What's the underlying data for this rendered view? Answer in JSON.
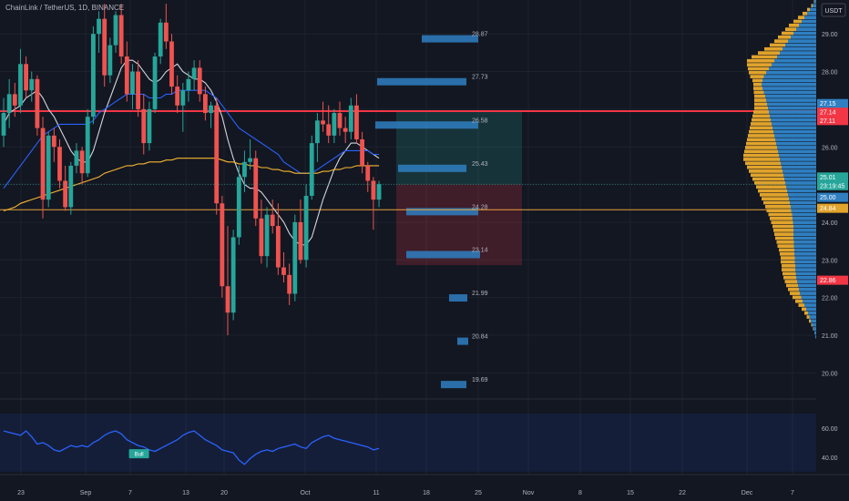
{
  "header": {
    "symbol_title": "ChainLink / TetherUS, 1D, BINANCE",
    "currency_button": "USDT"
  },
  "colors": {
    "background": "#131722",
    "grid": "#1e222d",
    "up": "#26a69a",
    "down": "#ef5350",
    "ma_fast": "#d1d4dc",
    "ma_mid": "#2962ff",
    "ma_slow": "#f7b531",
    "rsi_line": "#2962ff",
    "volume_profile_buy": "#2f7fc1",
    "volume_profile_sell": "#e1a42c",
    "resistance_line": "#f23645",
    "support_line": "#e8a23a"
  },
  "chart_data": {
    "type": "candlestick",
    "price_axis": {
      "ticks": [
        "29.00",
        "28.00",
        "27.00",
        "26.00",
        "25.00",
        "24.00",
        "23.00",
        "22.00",
        "21.00",
        "20.00"
      ],
      "range": [
        19.5,
        29.9
      ]
    },
    "price_labels": [
      {
        "text": "27.15",
        "price": 27.15,
        "color": "#2f7fc1"
      },
      {
        "text": "27.14",
        "price": 26.92,
        "color": "#f23645"
      },
      {
        "text": "27.11",
        "price": 26.7,
        "color": "#f23645"
      },
      {
        "text": "25.01",
        "price": 25.2,
        "color": "#26a69a"
      },
      {
        "text": "23:19:45",
        "price": 24.97,
        "color": "#26a69a"
      },
      {
        "text": "25.00",
        "price": 24.66,
        "color": "#2f7fc1"
      },
      {
        "text": "24.84",
        "price": 24.37,
        "color": "#e1a42c"
      },
      {
        "text": "22.86",
        "price": 22.46,
        "color": "#f23645"
      }
    ],
    "time_axis": {
      "ticks": [
        "23",
        "Sep",
        "7",
        "13",
        "20",
        "Oct",
        "11",
        "18",
        "25",
        "Nov",
        "8",
        "15",
        "22",
        "Dec",
        "7"
      ]
    },
    "horizontal_lines": [
      {
        "price": 26.95,
        "color": "#f23645"
      },
      {
        "price": 24.33,
        "color": "#e8a23a"
      }
    ],
    "candles": [
      [
        26.3,
        27.3,
        26.0,
        26.9
      ],
      [
        26.9,
        27.8,
        26.5,
        27.4
      ],
      [
        27.4,
        27.7,
        26.8,
        27.1
      ],
      [
        27.1,
        28.6,
        26.9,
        28.2
      ],
      [
        28.2,
        28.4,
        27.3,
        27.5
      ],
      [
        27.5,
        28.0,
        27.2,
        27.8
      ],
      [
        27.8,
        27.9,
        26.3,
        26.5
      ],
      [
        26.5,
        26.8,
        24.1,
        24.6
      ],
      [
        24.6,
        26.4,
        24.4,
        26.3
      ],
      [
        26.3,
        26.5,
        25.6,
        26.0
      ],
      [
        26.0,
        26.2,
        24.9,
        25.1
      ],
      [
        25.1,
        25.5,
        24.3,
        24.4
      ],
      [
        24.4,
        25.6,
        24.2,
        25.5
      ],
      [
        25.5,
        26.1,
        25.3,
        25.9
      ],
      [
        25.9,
        26.0,
        25.0,
        25.3
      ],
      [
        25.3,
        27.0,
        25.2,
        26.8
      ],
      [
        26.8,
        29.2,
        26.6,
        29.0
      ],
      [
        29.0,
        29.6,
        28.5,
        29.4
      ],
      [
        29.4,
        29.8,
        27.6,
        27.9
      ],
      [
        27.9,
        28.9,
        27.7,
        28.7
      ],
      [
        28.7,
        29.6,
        28.5,
        29.5
      ],
      [
        29.5,
        29.8,
        28.2,
        28.4
      ],
      [
        28.4,
        28.8,
        27.2,
        27.4
      ],
      [
        27.4,
        28.2,
        27.0,
        28.0
      ],
      [
        28.0,
        28.3,
        26.8,
        27.0
      ],
      [
        27.0,
        27.4,
        25.8,
        26.1
      ],
      [
        26.1,
        27.2,
        25.9,
        27.0
      ],
      [
        27.0,
        28.5,
        26.9,
        28.4
      ],
      [
        28.4,
        29.4,
        28.2,
        29.3
      ],
      [
        29.3,
        29.8,
        28.6,
        28.8
      ],
      [
        28.8,
        29.0,
        27.4,
        27.6
      ],
      [
        27.6,
        27.9,
        26.9,
        27.1
      ],
      [
        27.1,
        27.7,
        26.4,
        27.5
      ],
      [
        27.5,
        28.0,
        27.2,
        27.8
      ],
      [
        27.8,
        28.3,
        27.5,
        28.1
      ],
      [
        28.1,
        28.3,
        27.2,
        27.4
      ],
      [
        27.4,
        27.6,
        26.7,
        26.9
      ],
      [
        26.9,
        27.2,
        26.5,
        27.1
      ],
      [
        27.1,
        27.3,
        24.2,
        24.5
      ],
      [
        24.5,
        24.7,
        22.0,
        22.3
      ],
      [
        22.3,
        23.9,
        21.0,
        21.6
      ],
      [
        21.6,
        23.8,
        21.4,
        23.6
      ],
      [
        23.6,
        25.5,
        23.4,
        25.2
      ],
      [
        25.2,
        25.9,
        24.8,
        25.6
      ],
      [
        25.6,
        26.2,
        25.4,
        25.7
      ],
      [
        25.7,
        25.9,
        23.9,
        24.1
      ],
      [
        24.1,
        24.6,
        22.9,
        23.1
      ],
      [
        23.1,
        24.4,
        22.8,
        24.2
      ],
      [
        24.2,
        24.6,
        23.7,
        23.9
      ],
      [
        23.9,
        24.5,
        22.6,
        22.8
      ],
      [
        22.8,
        23.2,
        22.4,
        22.6
      ],
      [
        22.6,
        22.9,
        21.8,
        22.1
      ],
      [
        22.1,
        24.2,
        21.9,
        24.0
      ],
      [
        24.0,
        24.6,
        22.9,
        23.0
      ],
      [
        23.0,
        25.0,
        22.8,
        24.7
      ],
      [
        24.7,
        26.3,
        24.6,
        26.1
      ],
      [
        26.1,
        26.9,
        25.6,
        26.7
      ],
      [
        26.7,
        27.2,
        26.4,
        26.6
      ],
      [
        26.6,
        27.1,
        26.1,
        26.3
      ],
      [
        26.3,
        27.0,
        26.1,
        26.9
      ],
      [
        26.9,
        27.2,
        26.3,
        26.5
      ],
      [
        26.5,
        26.8,
        26.1,
        26.4
      ],
      [
        26.4,
        27.3,
        26.2,
        27.1
      ],
      [
        27.1,
        27.4,
        26.1,
        26.2
      ],
      [
        26.2,
        26.4,
        25.3,
        25.5
      ],
      [
        25.5,
        25.6,
        24.8,
        25.1
      ],
      [
        25.1,
        25.2,
        23.8,
        24.6
      ],
      [
        24.6,
        25.1,
        24.4,
        25.01
      ]
    ],
    "moving_averages": [
      {
        "name": "MA fast",
        "color": "#d1d4dc",
        "values": [
          26.6,
          26.9,
          27.0,
          27.1,
          27.3,
          27.4,
          27.5,
          27.3,
          27.0,
          26.8,
          26.5,
          26.2,
          25.9,
          25.7,
          25.6,
          25.6,
          25.9,
          26.4,
          26.9,
          27.3,
          27.7,
          28.1,
          28.3,
          28.3,
          28.2,
          28.0,
          27.8,
          27.7,
          27.8,
          28.0,
          28.1,
          28.2,
          28.0,
          27.9,
          27.8,
          27.8,
          27.7,
          27.5,
          27.2,
          26.8,
          26.2,
          25.7,
          25.3,
          25.0,
          24.9,
          24.9,
          24.8,
          24.6,
          24.4,
          24.2,
          24.0,
          23.7,
          23.5,
          23.4,
          23.4,
          23.6,
          24.1,
          24.6,
          25.0,
          25.4,
          25.7,
          25.9,
          26.1,
          26.1,
          26.0,
          25.9,
          25.8,
          25.7
        ]
      },
      {
        "name": "MA mid",
        "color": "#2962ff",
        "values": [
          24.9,
          25.1,
          25.3,
          25.5,
          25.7,
          25.9,
          26.1,
          26.3,
          26.4,
          26.5,
          26.6,
          26.6,
          26.6,
          26.6,
          26.6,
          26.6,
          26.7,
          26.9,
          27.0,
          27.1,
          27.2,
          27.3,
          27.4,
          27.4,
          27.4,
          27.4,
          27.3,
          27.3,
          27.3,
          27.4,
          27.4,
          27.5,
          27.5,
          27.5,
          27.5,
          27.5,
          27.5,
          27.4,
          27.3,
          27.1,
          26.9,
          26.7,
          26.5,
          26.4,
          26.3,
          26.2,
          26.1,
          26.0,
          25.9,
          25.8,
          25.6,
          25.5,
          25.4,
          25.3,
          25.3,
          25.3,
          25.4,
          25.5,
          25.6,
          25.7,
          25.8,
          25.9,
          25.9,
          25.9,
          25.9,
          25.9,
          25.8,
          25.8
        ]
      },
      {
        "name": "MA slow",
        "color": "#f7b531",
        "values": [
          24.3,
          24.35,
          24.4,
          24.5,
          24.55,
          24.6,
          24.65,
          24.7,
          24.75,
          24.8,
          24.85,
          24.9,
          24.95,
          25.0,
          25.05,
          25.1,
          25.15,
          25.2,
          25.3,
          25.35,
          25.4,
          25.45,
          25.5,
          25.5,
          25.55,
          25.55,
          25.6,
          25.6,
          25.6,
          25.65,
          25.65,
          25.7,
          25.7,
          25.7,
          25.7,
          25.7,
          25.7,
          25.7,
          25.7,
          25.65,
          25.6,
          25.6,
          25.55,
          25.55,
          25.5,
          25.5,
          25.45,
          25.45,
          25.4,
          25.4,
          25.35,
          25.35,
          25.3,
          25.3,
          25.3,
          25.3,
          25.3,
          25.35,
          25.35,
          25.4,
          25.4,
          25.45,
          25.45,
          25.5,
          25.5,
          25.5,
          25.5,
          25.5
        ]
      }
    ],
    "projection_levels": [
      {
        "label": "28.87",
        "price": 28.87,
        "bar_from": 463,
        "bar_to": 525
      },
      {
        "label": "27.73",
        "price": 27.73,
        "bar_from": 414,
        "bar_to": 512
      },
      {
        "label": "26.58",
        "price": 26.58,
        "bar_from": 412,
        "bar_to": 525
      },
      {
        "label": "25.43",
        "price": 25.43,
        "bar_from": 437,
        "bar_to": 512
      },
      {
        "label": "24.28",
        "price": 24.28,
        "bar_from": 446,
        "bar_to": 525
      },
      {
        "label": "23.14",
        "price": 23.14,
        "bar_from": 446,
        "bar_to": 527
      },
      {
        "label": "21.99",
        "price": 21.99,
        "bar_from": 493,
        "bar_to": 513
      },
      {
        "label": "20.84",
        "price": 20.84,
        "bar_from": 502,
        "bar_to": 514
      },
      {
        "label": "19.69",
        "price": 19.69,
        "bar_from": 484,
        "bar_to": 512
      }
    ],
    "position_zones": [
      {
        "type": "profit",
        "price_top": 26.95,
        "price_bottom": 25.0,
        "color": "#26a69a"
      },
      {
        "type": "loss",
        "price_top": 25.0,
        "price_bottom": 22.86,
        "color": "#f23645"
      }
    ],
    "volume_profile": {
      "price_range": [
        20.9,
        29.9
      ],
      "buy": [
        2,
        4,
        6,
        9,
        12,
        15,
        18,
        22,
        26,
        30,
        33,
        36,
        38,
        40,
        42,
        44,
        45,
        46,
        46,
        47,
        47,
        48,
        48,
        49,
        49,
        50,
        50,
        50,
        50,
        51,
        52,
        53,
        55,
        56,
        58,
        60,
        62,
        64,
        66,
        68,
        70,
        72,
        74,
        76,
        78,
        80,
        82,
        84,
        86,
        88,
        90,
        92,
        94,
        96,
        98,
        100,
        102,
        104,
        106,
        108,
        110,
        112,
        115,
        118,
        120,
        118,
        115,
        110,
        104,
        98,
        92,
        86,
        80,
        74,
        68,
        62,
        56,
        50,
        44,
        38,
        32,
        26,
        20,
        14,
        8,
        4
      ],
      "sell": [
        0,
        0,
        1,
        2,
        4,
        6,
        8,
        10,
        13,
        16,
        19,
        22,
        24,
        26,
        27,
        28,
        29,
        30,
        30,
        31,
        31,
        32,
        34,
        36,
        38,
        40,
        42,
        44,
        46,
        48,
        50,
        52,
        54,
        56,
        58,
        60,
        62,
        64,
        66,
        68,
        70,
        72,
        74,
        76,
        78,
        80,
        78,
        74,
        70,
        66,
        62,
        58,
        54,
        50,
        46,
        42,
        38,
        34,
        30,
        28,
        26,
        24,
        22,
        20,
        18,
        22,
        30,
        38,
        46,
        54,
        60,
        56,
        48,
        40,
        34,
        30,
        28,
        26,
        24,
        22,
        18,
        14,
        10,
        6,
        3,
        1
      ]
    },
    "rsi": {
      "name": "RSI",
      "ticks": [
        "60.00",
        "40.00"
      ],
      "range": [
        28,
        80
      ],
      "band": [
        30,
        70
      ],
      "signal_label": "Bull",
      "signal_index": 24,
      "values": [
        58,
        57,
        56,
        55,
        58,
        54,
        49,
        50,
        48,
        45,
        44,
        46,
        48,
        47,
        48,
        47,
        50,
        52,
        55,
        57,
        58,
        56,
        52,
        50,
        48,
        47,
        45,
        44,
        46,
        48,
        50,
        52,
        55,
        57,
        58,
        55,
        52,
        50,
        48,
        45,
        44,
        43,
        38,
        35,
        39,
        42,
        44,
        45,
        44,
        46,
        47,
        48,
        49,
        47,
        46,
        50,
        52,
        54,
        55,
        53,
        52,
        51,
        50,
        49,
        48,
        47,
        45,
        46
      ]
    }
  }
}
